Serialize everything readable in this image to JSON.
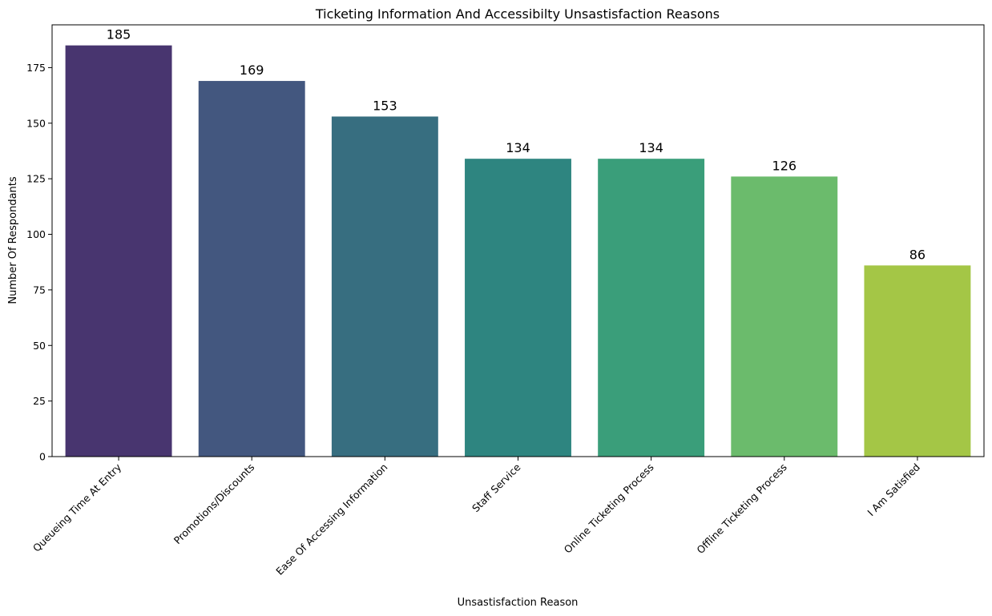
{
  "chart_data": {
    "type": "bar",
    "title": "Ticketing Information And Accessibilty Unsastisfaction Reasons",
    "xlabel": "Unsastisfaction Reason",
    "ylabel": "Number Of Respondants",
    "categories": [
      "Queueing Time At Entry",
      "Promotions/Discounts",
      "Ease Of Accessing Information",
      "Staff Service",
      "Online Ticketing Process",
      "Offline Ticketing Process",
      "I Am Satisfied"
    ],
    "values": [
      185,
      169,
      153,
      134,
      134,
      126,
      86
    ],
    "data_labels": [
      "185",
      "169",
      "153",
      "134",
      "134",
      "126",
      "86"
    ],
    "colors": [
      "#48356f",
      "#43577f",
      "#376e80",
      "#2e8580",
      "#3a9e7a",
      "#6bbb6c",
      "#a4c646"
    ],
    "ylim": [
      0,
      194.25
    ],
    "yticks": [
      0,
      25,
      50,
      75,
      100,
      125,
      150,
      175
    ],
    "grid": false,
    "legend": "none"
  }
}
